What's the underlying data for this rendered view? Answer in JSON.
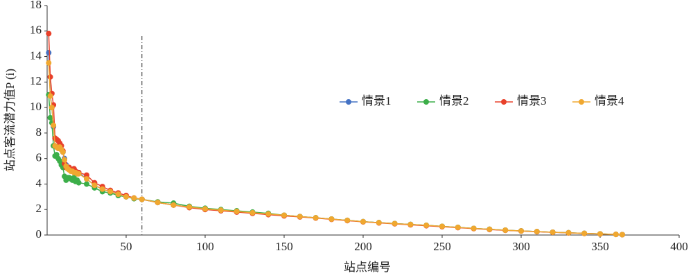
{
  "chart_data": {
    "type": "line",
    "x_label": "站点编号",
    "y_label": "站点客流潜力值P (i)",
    "x": [
      1,
      2,
      3,
      4,
      5,
      6,
      7,
      8,
      9,
      10,
      11,
      12,
      13,
      14,
      15,
      16,
      17,
      18,
      19,
      20,
      25,
      30,
      35,
      40,
      45,
      50,
      55,
      60,
      70,
      80,
      90,
      100,
      110,
      120,
      130,
      140,
      150,
      160,
      170,
      180,
      190,
      200,
      210,
      220,
      230,
      240,
      250,
      260,
      270,
      280,
      290,
      300,
      310,
      320,
      330,
      340,
      350,
      360,
      364
    ],
    "series": [
      {
        "name": "情景1",
        "color": "#4472c4",
        "values": [
          14.3,
          11.0,
          10.0,
          8.5,
          7.0,
          6.9,
          6.8,
          6.9,
          6.7,
          6.5,
          6.0,
          5.5,
          5.3,
          5.2,
          5.1,
          5.1,
          5.0,
          5.0,
          4.9,
          4.9,
          4.4,
          3.9,
          3.6,
          3.4,
          3.2,
          3.0,
          2.9,
          2.8,
          2.55,
          2.35,
          2.2,
          2.05,
          1.95,
          1.85,
          1.75,
          1.65,
          1.55,
          1.45,
          1.35,
          1.25,
          1.15,
          1.05,
          0.97,
          0.9,
          0.83,
          0.76,
          0.68,
          0.6,
          0.52,
          0.45,
          0.38,
          0.32,
          0.27,
          0.22,
          0.18,
          0.13,
          0.09,
          0.05,
          0.03
        ]
      },
      {
        "name": "情景2",
        "color": "#3cae49",
        "values": [
          11.0,
          9.2,
          8.8,
          7.0,
          6.2,
          6.3,
          6.0,
          5.8,
          5.5,
          5.3,
          4.6,
          4.3,
          4.5,
          4.5,
          4.4,
          4.3,
          4.5,
          4.2,
          4.3,
          4.1,
          4.0,
          3.7,
          3.4,
          3.3,
          3.1,
          3.0,
          2.85,
          2.8,
          2.6,
          2.5,
          2.25,
          2.1,
          2.0,
          1.9,
          1.8,
          1.7,
          1.55,
          1.45,
          1.35,
          1.25,
          1.15,
          1.05,
          0.97,
          0.9,
          0.83,
          0.76,
          0.68,
          0.6,
          0.52,
          0.45,
          0.38,
          0.32,
          0.27,
          0.22,
          0.18,
          0.13,
          0.09,
          0.05,
          0.03
        ]
      },
      {
        "name": "情景3",
        "color": "#e8402a",
        "values": [
          15.8,
          12.4,
          11.1,
          10.2,
          7.6,
          7.5,
          7.4,
          7.2,
          7.0,
          6.6,
          5.6,
          5.3,
          5.2,
          5.3,
          5.1,
          5.0,
          5.2,
          5.0,
          4.9,
          4.9,
          4.7,
          4.1,
          3.8,
          3.5,
          3.3,
          3.1,
          2.9,
          2.8,
          2.55,
          2.35,
          2.15,
          2.0,
          1.9,
          1.8,
          1.7,
          1.6,
          1.5,
          1.42,
          1.33,
          1.23,
          1.13,
          1.03,
          0.95,
          0.88,
          0.8,
          0.73,
          0.65,
          0.58,
          0.5,
          0.43,
          0.37,
          0.31,
          0.26,
          0.21,
          0.17,
          0.12,
          0.08,
          0.05,
          0.03
        ]
      },
      {
        "name": "情景4",
        "color": "#f0a830",
        "values": [
          13.5,
          10.9,
          10.0,
          8.6,
          7.0,
          6.9,
          6.8,
          6.9,
          6.7,
          6.5,
          5.9,
          5.4,
          5.2,
          5.1,
          5.0,
          5.0,
          4.9,
          4.9,
          4.8,
          4.8,
          4.4,
          3.9,
          3.6,
          3.4,
          3.2,
          3.0,
          2.9,
          2.8,
          2.55,
          2.35,
          2.2,
          2.05,
          1.95,
          1.85,
          1.75,
          1.65,
          1.55,
          1.45,
          1.35,
          1.25,
          1.15,
          1.05,
          0.97,
          0.9,
          0.83,
          0.76,
          0.68,
          0.6,
          0.52,
          0.45,
          0.38,
          0.32,
          0.27,
          0.22,
          0.18,
          0.13,
          0.09,
          0.05,
          0.03
        ]
      }
    ],
    "reference_x": 60,
    "xlim": [
      0,
      400
    ],
    "xticks": [
      50,
      100,
      150,
      200,
      250,
      300,
      350,
      400
    ],
    "ylim": [
      0,
      18
    ],
    "yticks": [
      0,
      2,
      4,
      6,
      8,
      10,
      12,
      14,
      16,
      18
    ],
    "legend": "right"
  }
}
